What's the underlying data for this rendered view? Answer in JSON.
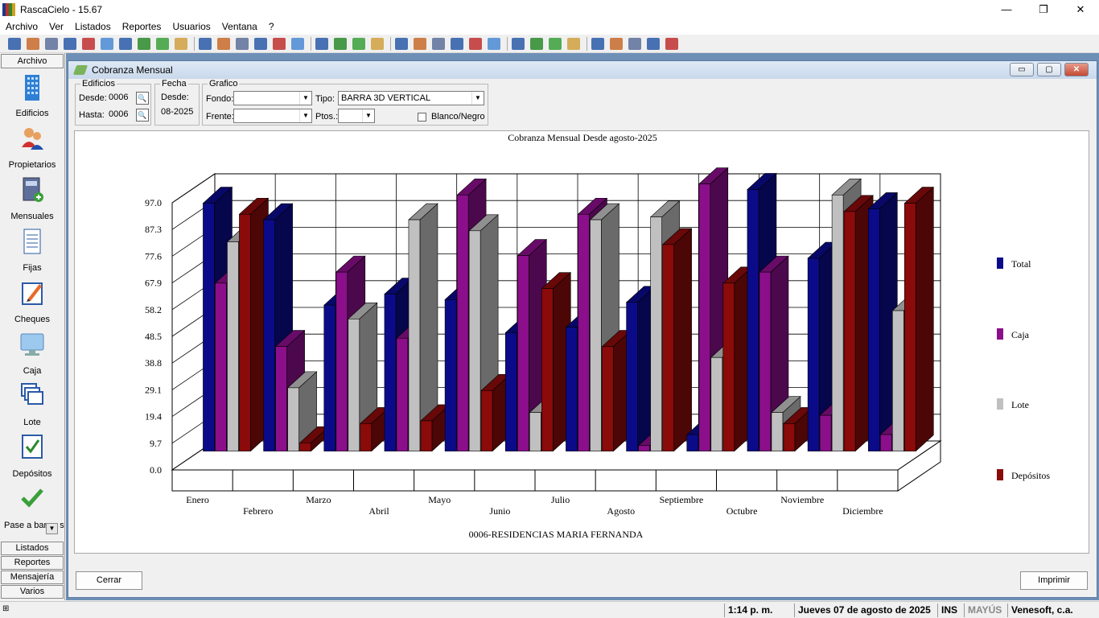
{
  "window": {
    "title": "RascaCielo - 15.67",
    "min": "—",
    "max": "❐",
    "close": "✕"
  },
  "menu": [
    "Archivo",
    "Ver",
    "Listados",
    "Reportes",
    "Usuarios",
    "Ventana",
    "?"
  ],
  "toolbar_icons": [
    "new-icon",
    "owners-icon",
    "receipt-icon",
    "doc-icon",
    "edit-icon",
    "monitor-icon",
    "layers-icon",
    "check-icon",
    "check-green-icon",
    "image-icon",
    "calc-grid-icon",
    "list-icon",
    "doc2-icon",
    "doc3-icon",
    "doc4-icon",
    "print-icon",
    "pen-icon",
    "pen2-icon",
    "page-icon",
    "tag-icon",
    "grid-icon",
    "table-icon",
    "table2-icon",
    "money-icon",
    "report-icon",
    "card-icon",
    "clock-icon",
    "folder-icon",
    "mail-icon",
    "calculator-icon",
    "books-icon",
    "file-icon",
    "window-icon",
    "blank-icon",
    "drive-icon"
  ],
  "sidebar": {
    "header": "Archivo",
    "items": [
      {
        "label": "Edificios",
        "icon": "building-icon"
      },
      {
        "label": "Propietarios",
        "icon": "people-icon"
      },
      {
        "label": "Mensuales",
        "icon": "book-add-icon"
      },
      {
        "label": "Fijas",
        "icon": "document-icon"
      },
      {
        "label": "Cheques",
        "icon": "check-write-icon"
      },
      {
        "label": "Caja",
        "icon": "monitor-icon"
      },
      {
        "label": "Lote",
        "icon": "stack-icon"
      },
      {
        "label": "Depósitos",
        "icon": "clipboard-check-icon"
      },
      {
        "label": "Pase a bar",
        "icon": "checkmark-icon"
      }
    ],
    "partial_label_tail": "s",
    "footer": [
      "Listados",
      "Reportes",
      "Mensajería",
      "Varios"
    ]
  },
  "form": {
    "title": "Cobranza Mensual",
    "edificios": {
      "legend": "Edificios",
      "desde_label": "Desde:",
      "desde_value": "0006",
      "hasta_label": "Hasta:",
      "hasta_value": "0006"
    },
    "fecha": {
      "legend": "Fecha",
      "desde_label": "Desde:",
      "desde_value": "08-2025"
    },
    "grafico": {
      "legend": "Grafico",
      "fondo_label": "Fondo:",
      "fondo_value": "",
      "frente_label": "Frente:",
      "frente_value": "",
      "tipo_label": "Tipo:",
      "tipo_value": "BARRA 3D VERTICAL",
      "ptos_label": "Ptos.:",
      "ptos_value": "",
      "bn_label": "Blanco/Negro",
      "bn_checked": false
    },
    "cerrar": "Cerrar",
    "imprimir": "Imprimir"
  },
  "chart_data": {
    "type": "bar",
    "subtype": "3d-vertical",
    "title": "Cobranza Mensual Desde agosto-2025",
    "xlabel": "0006-RESIDENCIAS MARIA FERNANDA",
    "ylabel": "",
    "ylim": [
      0,
      97
    ],
    "yticks": [
      "0.0",
      "9.7",
      "19.4",
      "29.1",
      "38.8",
      "48.5",
      "58.2",
      "67.9",
      "77.6",
      "87.3",
      "97.0"
    ],
    "categories": [
      "Enero",
      "Febrero",
      "Marzo",
      "Abril",
      "Mayo",
      "Junio",
      "Julio",
      "Agosto",
      "Septiembre",
      "Octubre",
      "Noviembre",
      "Diciembre"
    ],
    "series": [
      {
        "name": "Total",
        "color": "#0b0b8a",
        "values": [
          90,
          84,
          53,
          57,
          55,
          43,
          45,
          54,
          6,
          95,
          70,
          88
        ]
      },
      {
        "name": "Caja",
        "color": "#8b0f8b",
        "values": [
          61,
          38,
          65,
          41,
          93,
          71,
          86,
          2,
          97,
          65,
          13,
          6
        ]
      },
      {
        "name": "Lote",
        "color": "#c0c0c0",
        "values": [
          76,
          23,
          48,
          84,
          80,
          14,
          84,
          85,
          34,
          14,
          93,
          51
        ]
      },
      {
        "name": "Depósitos",
        "color": "#8b0a0a",
        "values": [
          86,
          3,
          10,
          11,
          22,
          59,
          38,
          75,
          61,
          10,
          87,
          90
        ]
      }
    ],
    "legend": "right",
    "grid": true
  },
  "status": {
    "time": "1:14 p. m.",
    "date": "Jueves 07 de agosto de 2025",
    "ins": "INS",
    "caps": "MAYÚS",
    "company": "Venesoft, c.a."
  }
}
